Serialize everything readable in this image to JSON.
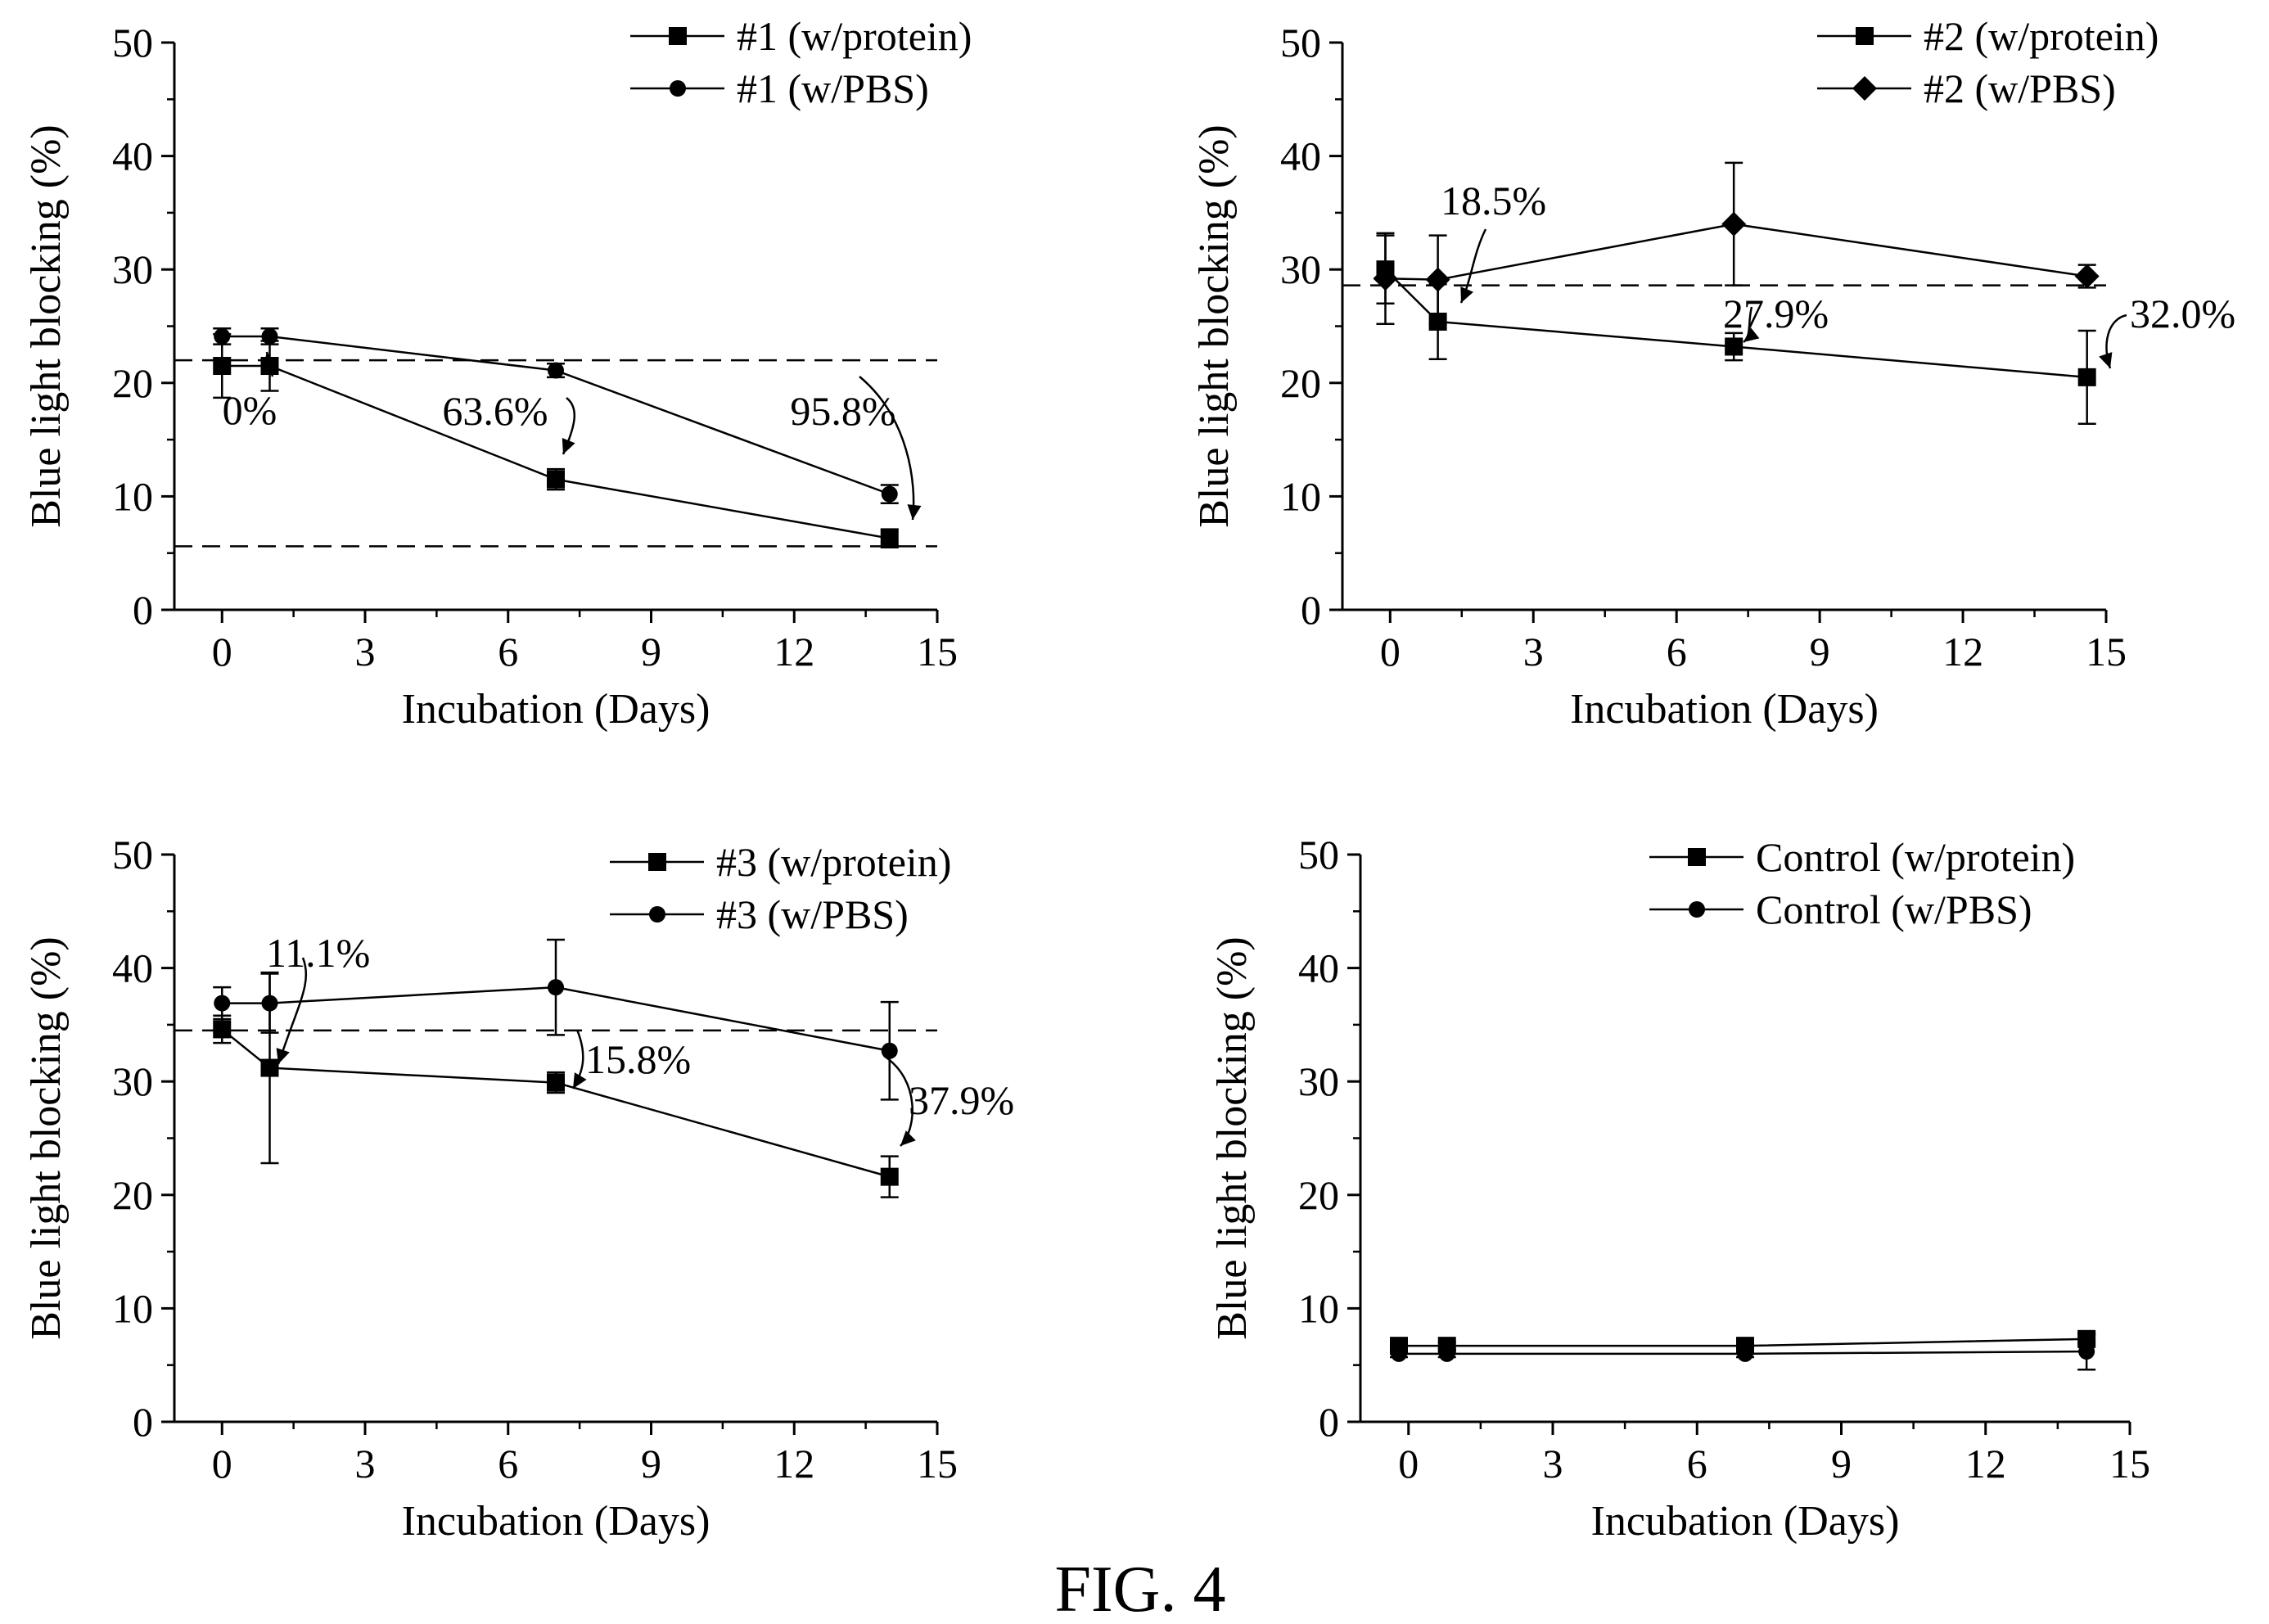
{
  "figure": {
    "caption": "FIG. 4"
  },
  "chart_data": [
    {
      "type": "line",
      "xlabel": "Incubation (Days)",
      "ylabel": "Blue light blocking (%)",
      "xlim": [
        -1,
        15
      ],
      "ylim": [
        0,
        50
      ],
      "xticks": [
        "0",
        "3",
        "6",
        "9",
        "12",
        "15"
      ],
      "yticks": [
        "0",
        "10",
        "20",
        "30",
        "40",
        "50"
      ],
      "legend_position": "top-right",
      "series": [
        {
          "name": "#1 (w/protein)",
          "marker": "square",
          "x": [
            0,
            1,
            7,
            14
          ],
          "y": [
            21.5,
            21.5,
            11.5,
            6.3
          ],
          "err": [
            2.8,
            2.2,
            0.9,
            0.8
          ]
        },
        {
          "name": "#1 (w/PBS)",
          "marker": "circle",
          "x": [
            0,
            1,
            7,
            14
          ],
          "y": [
            24.1,
            24.1,
            21.1,
            10.2
          ],
          "err": [
            0.7,
            0.7,
            0.6,
            0.8
          ]
        }
      ],
      "reference_lines": [
        22.0,
        5.6
      ],
      "annotations": [
        {
          "text": "0%"
        },
        {
          "text": "63.6%"
        },
        {
          "text": "95.8%"
        }
      ]
    },
    {
      "type": "line",
      "xlabel": "Incubation (Days)",
      "ylabel": "Blue light blocking (%)",
      "xlim": [
        -1,
        15
      ],
      "ylim": [
        0,
        50
      ],
      "xticks": [
        "0",
        "3",
        "6",
        "9",
        "12",
        "15"
      ],
      "yticks": [
        "0",
        "10",
        "20",
        "30",
        "40",
        "50"
      ],
      "legend_position": "top-right",
      "series": [
        {
          "name": "#2 (w/protein)",
          "marker": "square",
          "x": [
            -0.1,
            1,
            7.2,
            14.6
          ],
          "y": [
            30.0,
            25.4,
            23.2,
            20.5
          ],
          "err": [
            3.0,
            3.3,
            1.2,
            4.1
          ]
        },
        {
          "name": "#2 (w/PBS)",
          "marker": "diamond",
          "x": [
            -0.1,
            1,
            7.2,
            14.6
          ],
          "y": [
            29.2,
            29.1,
            34.0,
            29.4
          ],
          "err": [
            4.0,
            3.9,
            5.4,
            1.0
          ]
        }
      ],
      "reference_lines": [
        28.6
      ],
      "annotations": [
        {
          "text": "18.5%"
        },
        {
          "text": "27.9%"
        },
        {
          "text": "32.0%"
        }
      ]
    },
    {
      "type": "line",
      "xlabel": "Incubation (Days)",
      "ylabel": "Blue light blocking (%)",
      "xlim": [
        -1,
        15
      ],
      "ylim": [
        0,
        50
      ],
      "xticks": [
        "0",
        "3",
        "6",
        "9",
        "12",
        "15"
      ],
      "yticks": [
        "0",
        "10",
        "20",
        "30",
        "40",
        "50"
      ],
      "legend_position": "top-right",
      "series": [
        {
          "name": "#3 (w/protein)",
          "marker": "square",
          "x": [
            0,
            1,
            7,
            14
          ],
          "y": [
            34.6,
            31.2,
            29.9,
            21.6
          ],
          "err": [
            1.2,
            8.4,
            0.9,
            1.8
          ]
        },
        {
          "name": "#3 (w/PBS)",
          "marker": "circle",
          "x": [
            0,
            1,
            7,
            14
          ],
          "y": [
            36.9,
            36.9,
            38.3,
            32.7
          ],
          "err": [
            1.4,
            2.6,
            4.2,
            4.3
          ]
        }
      ],
      "reference_lines": [
        34.5
      ],
      "annotations": [
        {
          "text": "11.1%"
        },
        {
          "text": "15.8%"
        },
        {
          "text": "37.9%"
        }
      ]
    },
    {
      "type": "line",
      "xlabel": "Incubation (Days)",
      "ylabel": "Blue light blocking (%)",
      "xlim": [
        -1,
        15
      ],
      "ylim": [
        0,
        50
      ],
      "xticks": [
        "0",
        "3",
        "6",
        "9",
        "12",
        "15"
      ],
      "yticks": [
        "0",
        "10",
        "20",
        "30",
        "40",
        "50"
      ],
      "legend_position": "top-right",
      "series": [
        {
          "name": "Control (w/protein)",
          "marker": "square",
          "x": [
            -0.2,
            0.8,
            7,
            14.1
          ],
          "y": [
            6.7,
            6.7,
            6.7,
            7.3
          ],
          "err": [
            0.3,
            0.3,
            0.3,
            0.4
          ]
        },
        {
          "name": "Control (w/PBS)",
          "marker": "circle",
          "x": [
            -0.2,
            0.8,
            7,
            14.1
          ],
          "y": [
            6.0,
            6.0,
            6.0,
            6.2
          ],
          "err": [
            0.3,
            0.3,
            0.3,
            1.6
          ]
        }
      ],
      "reference_lines": [],
      "annotations": []
    }
  ]
}
